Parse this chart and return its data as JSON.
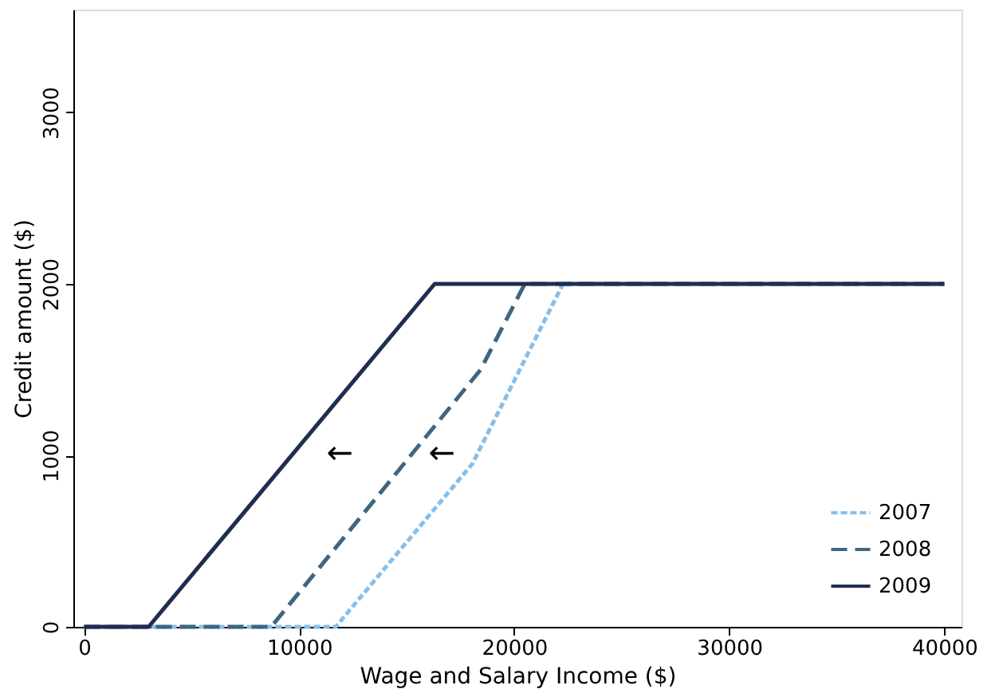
{
  "chart_data": {
    "type": "line",
    "xlabel": "Wage and Salary Income ($)",
    "ylabel": "Credit amount ($)",
    "xlim": [
      -500,
      40800
    ],
    "ylim": [
      0,
      3600
    ],
    "xticks": [
      0,
      10000,
      20000,
      30000,
      40000
    ],
    "yticks": [
      0,
      1000,
      2000,
      3000
    ],
    "grid": false,
    "legend": "bottom right",
    "marker": "none",
    "series": [
      {
        "name": "2007",
        "color": "#86bfea",
        "line_style": "dotted",
        "x": [
          0,
          11700,
          18050,
          22270,
          40000
        ],
        "values": [
          0,
          0,
          950,
          2000,
          2000
        ]
      },
      {
        "name": "2008",
        "color": "#3e6680",
        "line_style": "dashed",
        "x": [
          0,
          8700,
          18440,
          20490,
          40000
        ],
        "values": [
          0,
          0,
          1500,
          2000,
          2000
        ]
      },
      {
        "name": "2009",
        "color": "#1f2d50",
        "line_style": "solid",
        "x": [
          0,
          3000,
          16300,
          40000
        ],
        "values": [
          0,
          0,
          2000,
          2000
        ]
      }
    ],
    "annotations": [
      "←",
      "←"
    ]
  }
}
